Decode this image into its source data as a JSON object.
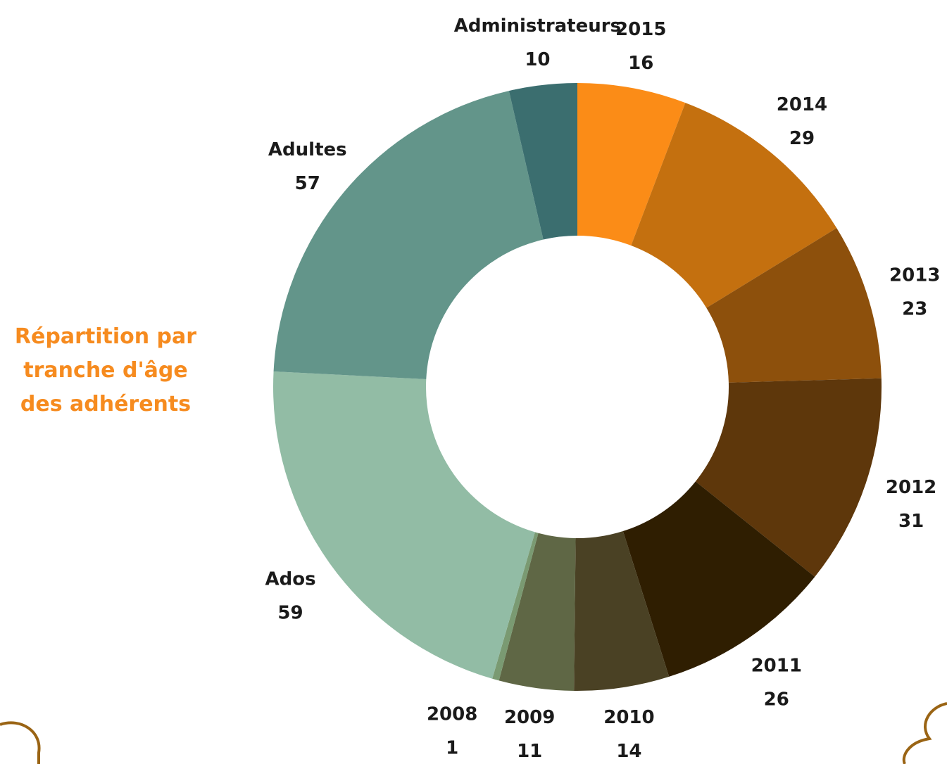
{
  "chart_data": {
    "type": "donut",
    "title": "Répartition par tranche d'âge des adhérents",
    "categories": [
      "2015",
      "2014",
      "2013",
      "2012",
      "2011",
      "2010",
      "2009",
      "2008",
      "Ados",
      "Adultes",
      "Administrateurs"
    ],
    "values": [
      16,
      29,
      23,
      31,
      26,
      14,
      11,
      1,
      59,
      57,
      10
    ],
    "colors": [
      "#fb8c17",
      "#c4700f",
      "#8d500c",
      "#5e370b",
      "#2f1e01",
      "#4a4124",
      "#5f6745",
      "#7a9a72",
      "#92bca5",
      "#63958a",
      "#3b6e6f"
    ]
  }
}
